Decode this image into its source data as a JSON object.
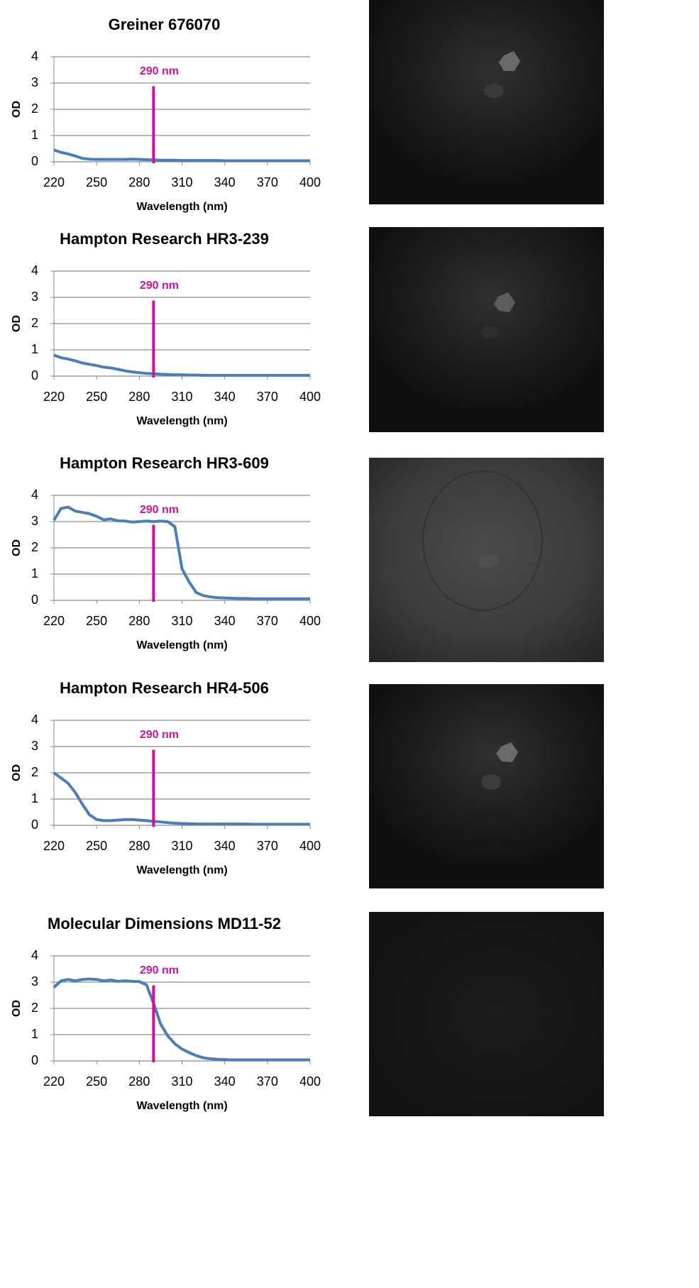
{
  "chart_data": [
    {
      "type": "line",
      "title": "Greiner 676070",
      "xlabel": "Wavelength (nm)",
      "ylabel": "OD",
      "x": [
        220,
        225,
        230,
        235,
        240,
        245,
        250,
        255,
        260,
        265,
        270,
        275,
        280,
        285,
        290,
        295,
        300,
        305,
        310,
        315,
        320,
        325,
        330,
        335,
        340,
        345,
        350,
        355,
        360,
        365,
        370,
        375,
        380,
        385,
        390,
        395,
        400
      ],
      "values": [
        0.45,
        0.36,
        0.3,
        0.22,
        0.13,
        0.1,
        0.09,
        0.09,
        0.09,
        0.09,
        0.09,
        0.1,
        0.09,
        0.08,
        0.07,
        0.06,
        0.06,
        0.06,
        0.05,
        0.05,
        0.05,
        0.05,
        0.05,
        0.05,
        0.04,
        0.04,
        0.04,
        0.04,
        0.04,
        0.04,
        0.04,
        0.04,
        0.04,
        0.04,
        0.04,
        0.04,
        0.04
      ],
      "color": "#4a7ebb",
      "xlim": [
        220,
        400
      ],
      "xticks": [
        220,
        250,
        280,
        310,
        340,
        370,
        400
      ],
      "ylim": [
        0,
        4
      ],
      "yticks": [
        0,
        1,
        2,
        3,
        4
      ],
      "grid": true,
      "vline": {
        "value": 290,
        "label": "290 nm",
        "color": "#c8139a"
      }
    },
    {
      "type": "line",
      "title": "Hampton Research HR3-239",
      "xlabel": "Wavelength (nm)",
      "ylabel": "OD",
      "x": [
        220,
        225,
        230,
        235,
        240,
        245,
        250,
        255,
        260,
        265,
        270,
        275,
        280,
        285,
        290,
        295,
        300,
        305,
        310,
        315,
        320,
        325,
        330,
        335,
        340,
        345,
        350,
        355,
        360,
        365,
        370,
        375,
        380,
        385,
        390,
        395,
        400
      ],
      "values": [
        0.8,
        0.7,
        0.65,
        0.58,
        0.5,
        0.45,
        0.4,
        0.34,
        0.31,
        0.26,
        0.2,
        0.16,
        0.13,
        0.1,
        0.09,
        0.07,
        0.06,
        0.05,
        0.05,
        0.04,
        0.04,
        0.03,
        0.03,
        0.03,
        0.03,
        0.03,
        0.03,
        0.03,
        0.03,
        0.03,
        0.03,
        0.03,
        0.03,
        0.03,
        0.03,
        0.03,
        0.03
      ],
      "color": "#4a7ebb",
      "xlim": [
        220,
        400
      ],
      "xticks": [
        220,
        250,
        280,
        310,
        340,
        370,
        400
      ],
      "ylim": [
        0,
        4
      ],
      "yticks": [
        0,
        1,
        2,
        3,
        4
      ],
      "grid": true,
      "vline": {
        "value": 290,
        "label": "290 nm",
        "color": "#c8139a"
      }
    },
    {
      "type": "line",
      "title": "Hampton Research HR3-609",
      "xlabel": "Wavelength (nm)",
      "ylabel": "OD",
      "x": [
        220,
        225,
        230,
        235,
        240,
        245,
        250,
        255,
        260,
        265,
        270,
        275,
        280,
        285,
        290,
        295,
        300,
        305,
        310,
        315,
        320,
        325,
        330,
        335,
        340,
        345,
        350,
        355,
        360,
        365,
        370,
        375,
        380,
        385,
        390,
        395,
        400
      ],
      "values": [
        3.05,
        3.5,
        3.55,
        3.4,
        3.35,
        3.3,
        3.2,
        3.07,
        3.1,
        3.03,
        3.02,
        2.98,
        3.0,
        3.02,
        3.0,
        3.02,
        3.0,
        2.8,
        1.2,
        0.7,
        0.3,
        0.18,
        0.13,
        0.1,
        0.09,
        0.08,
        0.07,
        0.07,
        0.06,
        0.06,
        0.06,
        0.06,
        0.06,
        0.06,
        0.06,
        0.06,
        0.06
      ],
      "color": "#4a7ebb",
      "xlim": [
        220,
        400
      ],
      "xticks": [
        220,
        250,
        280,
        310,
        340,
        370,
        400
      ],
      "ylim": [
        0,
        4
      ],
      "yticks": [
        0,
        1,
        2,
        3,
        4
      ],
      "grid": true,
      "vline": {
        "value": 290,
        "label": "290 nm",
        "color": "#c8139a"
      }
    },
    {
      "type": "line",
      "title": "Hampton Research HR4-506",
      "xlabel": "Wavelength (nm)",
      "ylabel": "OD",
      "x": [
        220,
        225,
        230,
        235,
        240,
        245,
        250,
        255,
        260,
        265,
        270,
        275,
        280,
        285,
        290,
        295,
        300,
        305,
        310,
        315,
        320,
        325,
        330,
        335,
        340,
        345,
        350,
        355,
        360,
        365,
        370,
        375,
        380,
        385,
        390,
        395,
        400
      ],
      "values": [
        2.0,
        1.8,
        1.6,
        1.25,
        0.8,
        0.4,
        0.22,
        0.18,
        0.18,
        0.2,
        0.22,
        0.22,
        0.2,
        0.18,
        0.15,
        0.13,
        0.1,
        0.08,
        0.07,
        0.06,
        0.05,
        0.05,
        0.05,
        0.05,
        0.05,
        0.05,
        0.05,
        0.05,
        0.04,
        0.04,
        0.04,
        0.04,
        0.04,
        0.04,
        0.04,
        0.04,
        0.04
      ],
      "color": "#4a7ebb",
      "xlim": [
        220,
        400
      ],
      "xticks": [
        220,
        250,
        280,
        310,
        340,
        370,
        400
      ],
      "ylim": [
        0,
        4
      ],
      "yticks": [
        0,
        1,
        2,
        3,
        4
      ],
      "grid": true,
      "vline": {
        "value": 290,
        "label": "290 nm",
        "color": "#c8139a"
      }
    },
    {
      "type": "line",
      "title": "Molecular Dimensions MD11-52",
      "xlabel": "Wavelength (nm)",
      "ylabel": "OD",
      "x": [
        220,
        225,
        230,
        235,
        240,
        245,
        250,
        255,
        260,
        265,
        270,
        275,
        280,
        285,
        290,
        295,
        300,
        305,
        310,
        315,
        320,
        325,
        330,
        335,
        340,
        345,
        350,
        355,
        360,
        365,
        370,
        375,
        380,
        385,
        390,
        395,
        400
      ],
      "values": [
        2.8,
        3.05,
        3.1,
        3.05,
        3.1,
        3.12,
        3.1,
        3.05,
        3.08,
        3.03,
        3.05,
        3.03,
        3.02,
        2.9,
        2.2,
        1.4,
        0.95,
        0.65,
        0.45,
        0.32,
        0.2,
        0.12,
        0.08,
        0.06,
        0.05,
        0.04,
        0.04,
        0.04,
        0.04,
        0.04,
        0.04,
        0.04,
        0.04,
        0.04,
        0.04,
        0.04,
        0.04
      ],
      "color": "#4a7ebb",
      "xlim": [
        220,
        400
      ],
      "xticks": [
        220,
        250,
        280,
        310,
        340,
        370,
        400
      ],
      "ylim": [
        0,
        4
      ],
      "yticks": [
        0,
        1,
        2,
        3,
        4
      ],
      "grid": true,
      "vline": {
        "value": 290,
        "label": "290 nm",
        "color": "#c8139a"
      }
    }
  ]
}
